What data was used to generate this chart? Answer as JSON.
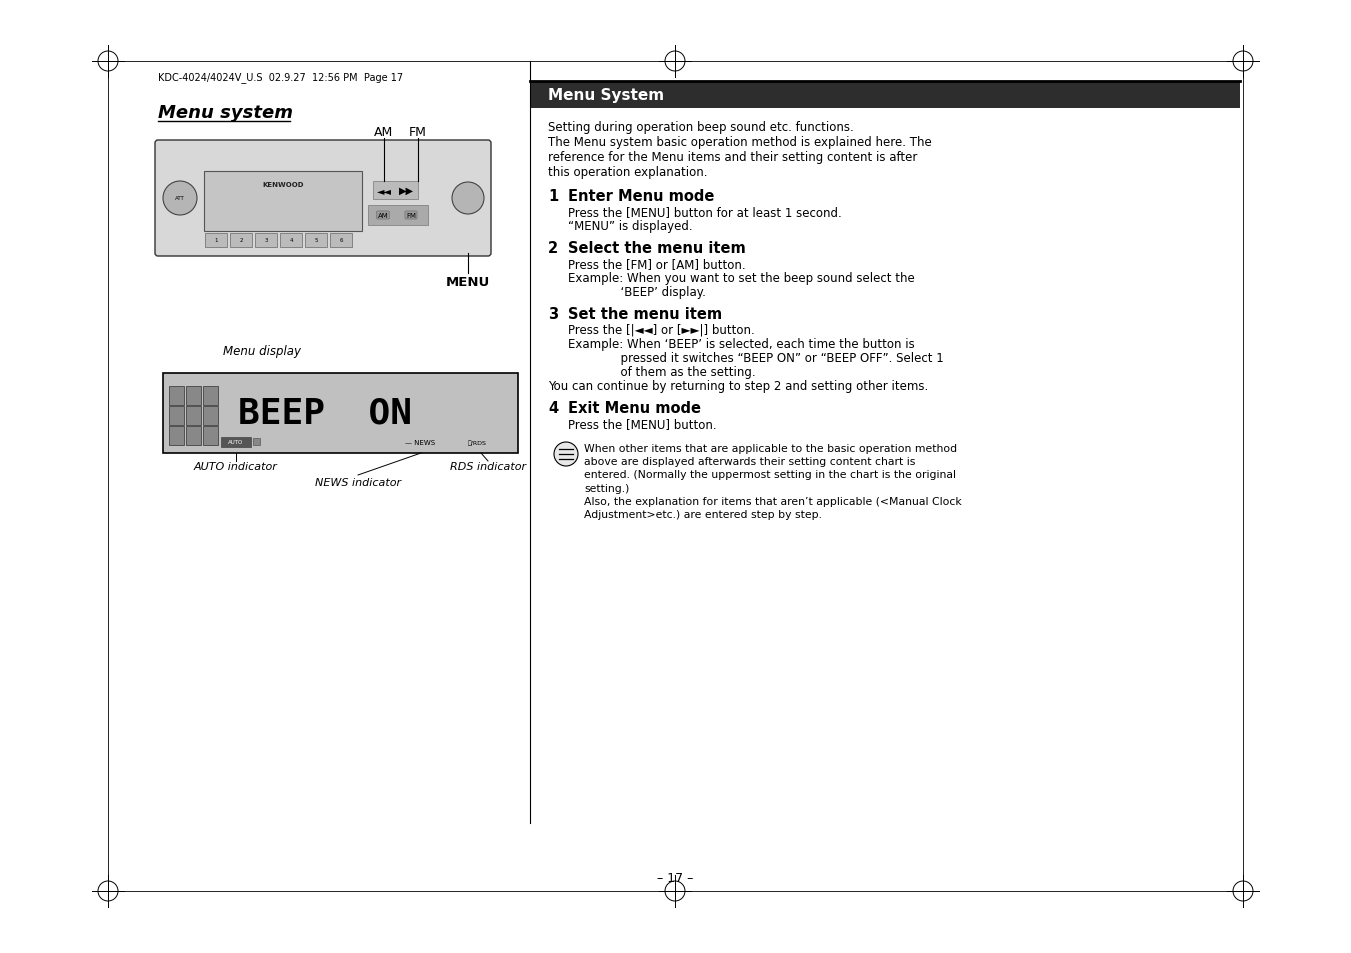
{
  "page_bg": "#ffffff",
  "title_text": "Menu system",
  "header_box_color": "#2d2d2d",
  "header_text": "Menu System",
  "header_text_color": "#ffffff",
  "top_header": "KDC-4024/4024V_U.S  02.9.27  12:56 PM  Page 17",
  "intro_lines": [
    "Setting during operation beep sound etc. functions.",
    "The Menu system basic operation method is explained here. The",
    "reference for the Menu items and their setting content is after",
    "this operation explanation."
  ],
  "steps": [
    {
      "num": "1",
      "title": "Enter Menu mode",
      "body_lines": [
        "Press the [MENU] button for at least 1 second.",
        "“MENU” is displayed."
      ],
      "continuation": null
    },
    {
      "num": "2",
      "title": "Select the menu item",
      "body_lines": [
        "Press the [FM] or [AM] button.",
        "Example: When you want to set the beep sound select the",
        "              ‘BEEP’ display."
      ],
      "continuation": null
    },
    {
      "num": "3",
      "title": "Set the menu item",
      "body_lines": [
        "Press the [|◄◄] or [►►|] button.",
        "Example: When ‘BEEP’ is selected, each time the button is",
        "              pressed it switches “BEEP ON” or “BEEP OFF”. Select 1",
        "              of them as the setting."
      ],
      "continuation": "You can continue by returning to step 2 and setting other items."
    },
    {
      "num": "4",
      "title": "Exit Menu mode",
      "body_lines": [
        "Press the [MENU] button."
      ],
      "continuation": null
    }
  ],
  "note_lines": [
    "When other items that are applicable to the basic operation method",
    "above are displayed afterwards their setting content chart is",
    "entered. (Normally the uppermost setting in the chart is the original",
    "setting.)",
    "Also, the explanation for items that aren’t applicable (<Manual Clock",
    "Adjustment>etc.) are entered step by step."
  ],
  "page_number": "– 17 –",
  "lbl_am": "AM",
  "lbl_fm": "FM",
  "lbl_menu": "MENU",
  "lbl_menu_display": "Menu display",
  "lbl_auto": "AUTO indicator",
  "lbl_news": "NEWS indicator",
  "lbl_rds": "RDS indicator"
}
